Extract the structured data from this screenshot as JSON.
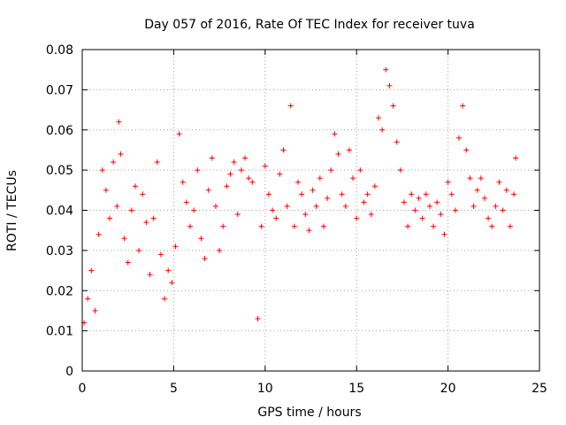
{
  "chart_data": {
    "type": "scatter",
    "title": "Day 057 of 2016, Rate Of TEC Index for receiver tuva",
    "xlabel": "GPS time / hours",
    "ylabel": "ROTI / TECUs",
    "xlim": [
      0,
      25
    ],
    "ylim": [
      0,
      0.08
    ],
    "x_ticks": [
      0,
      5,
      10,
      15,
      20,
      25
    ],
    "x_tick_labels": [
      "0",
      "5",
      "10",
      "15",
      "20",
      "25"
    ],
    "y_ticks": [
      0,
      0.01,
      0.02,
      0.03,
      0.04,
      0.05,
      0.06,
      0.07,
      0.08
    ],
    "y_tick_labels": [
      "0",
      "0.01",
      "0.02",
      "0.03",
      "0.04",
      "0.05",
      "0.06",
      "0.07",
      "0.08"
    ],
    "grid": true,
    "marker": "+",
    "color": "#ff0000",
    "series": [
      {
        "name": "ROTI",
        "x": [
          0.1,
          0.3,
          0.5,
          0.7,
          0.9,
          1.1,
          1.3,
          1.5,
          1.7,
          1.9,
          2.0,
          2.1,
          2.3,
          2.5,
          2.7,
          2.9,
          3.1,
          3.3,
          3.5,
          3.7,
          3.9,
          4.1,
          4.3,
          4.5,
          4.7,
          4.9,
          5.1,
          5.3,
          5.5,
          5.7,
          5.9,
          6.1,
          6.3,
          6.5,
          6.7,
          6.9,
          7.1,
          7.3,
          7.5,
          7.7,
          7.9,
          8.1,
          8.3,
          8.5,
          8.7,
          8.9,
          9.1,
          9.3,
          9.6,
          9.8,
          10.0,
          10.2,
          10.4,
          10.6,
          10.8,
          11.0,
          11.2,
          11.4,
          11.6,
          11.8,
          12.0,
          12.2,
          12.4,
          12.6,
          12.8,
          13.0,
          13.2,
          13.4,
          13.6,
          13.8,
          14.0,
          14.2,
          14.4,
          14.6,
          14.8,
          15.0,
          15.2,
          15.4,
          15.6,
          15.8,
          16.0,
          16.2,
          16.4,
          16.6,
          16.8,
          17.0,
          17.2,
          17.4,
          17.6,
          17.8,
          18.0,
          18.2,
          18.4,
          18.6,
          18.8,
          19.0,
          19.2,
          19.4,
          19.6,
          19.8,
          20.0,
          20.2,
          20.4,
          20.6,
          20.8,
          21.0,
          21.2,
          21.4,
          21.6,
          21.8,
          22.0,
          22.2,
          22.4,
          22.6,
          22.8,
          23.0,
          23.2,
          23.4,
          23.6,
          23.7
        ],
        "y": [
          0.012,
          0.018,
          0.025,
          0.015,
          0.034,
          0.05,
          0.045,
          0.038,
          0.052,
          0.041,
          0.062,
          0.054,
          0.033,
          0.027,
          0.04,
          0.046,
          0.03,
          0.044,
          0.037,
          0.024,
          0.038,
          0.052,
          0.029,
          0.018,
          0.025,
          0.022,
          0.031,
          0.059,
          0.047,
          0.042,
          0.036,
          0.04,
          0.05,
          0.033,
          0.028,
          0.045,
          0.053,
          0.041,
          0.03,
          0.036,
          0.046,
          0.049,
          0.052,
          0.039,
          0.05,
          0.053,
          0.048,
          0.047,
          0.013,
          0.036,
          0.051,
          0.044,
          0.04,
          0.038,
          0.049,
          0.055,
          0.041,
          0.066,
          0.036,
          0.047,
          0.044,
          0.039,
          0.035,
          0.045,
          0.041,
          0.048,
          0.036,
          0.043,
          0.05,
          0.059,
          0.054,
          0.044,
          0.041,
          0.055,
          0.048,
          0.038,
          0.05,
          0.042,
          0.044,
          0.039,
          0.046,
          0.063,
          0.06,
          0.075,
          0.071,
          0.066,
          0.057,
          0.05,
          0.042,
          0.036,
          0.044,
          0.04,
          0.043,
          0.038,
          0.044,
          0.041,
          0.036,
          0.042,
          0.039,
          0.034,
          0.047,
          0.044,
          0.04,
          0.058,
          0.066,
          0.055,
          0.048,
          0.041,
          0.045,
          0.048,
          0.043,
          0.038,
          0.036,
          0.041,
          0.047,
          0.04,
          0.045,
          0.036,
          0.044,
          0.053
        ]
      }
    ]
  }
}
